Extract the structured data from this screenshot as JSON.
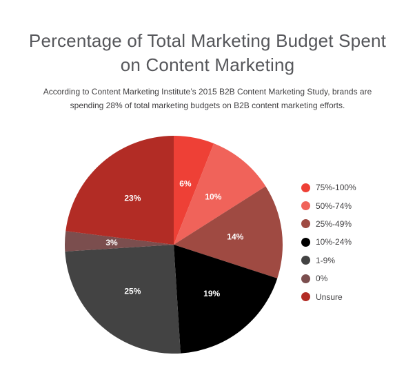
{
  "page": {
    "background": "#ffffff"
  },
  "chart_data": {
    "type": "pie",
    "title": "Percentage of Total Marketing Budget Spent on Content Marketing",
    "title_lines": [
      "Percentage of Total Marketing Budget Spent",
      "on Content Marketing"
    ],
    "subtitle": "According to Content Marketing Institute’s 2015 B2B Content Marketing Study, brands are spending 28% of total marketing budgets on B2B content marketing efforts.",
    "subtitle_lines": [
      "According to Content Marketing Institute’s 2015 B2B Content Marketing Study, brands are",
      "spending 28% of total marketing budgets on B2B content marketing efforts."
    ],
    "categories": [
      "75%-100%",
      "50%-74%",
      "25%-49%",
      "10%-24%",
      "1-9%",
      "0%",
      "Unsure"
    ],
    "values": [
      6,
      10,
      14,
      19,
      25,
      3,
      23
    ],
    "slice_labels": [
      "6%",
      "10%",
      "14%",
      "19%",
      "25%",
      "3%",
      "23%"
    ],
    "colors": [
      "#ee4036",
      "#f0635a",
      "#9f4a42",
      "#000000",
      "#434343",
      "#7b4e4e",
      "#b22c25"
    ],
    "start_angle_deg": 0,
    "direction": "clockwise",
    "legend_position": "right",
    "slice_label_color": "#ffffff",
    "text_colors": {
      "title": "#56575b",
      "subtitle": "#414042",
      "legend": "#414042"
    }
  }
}
